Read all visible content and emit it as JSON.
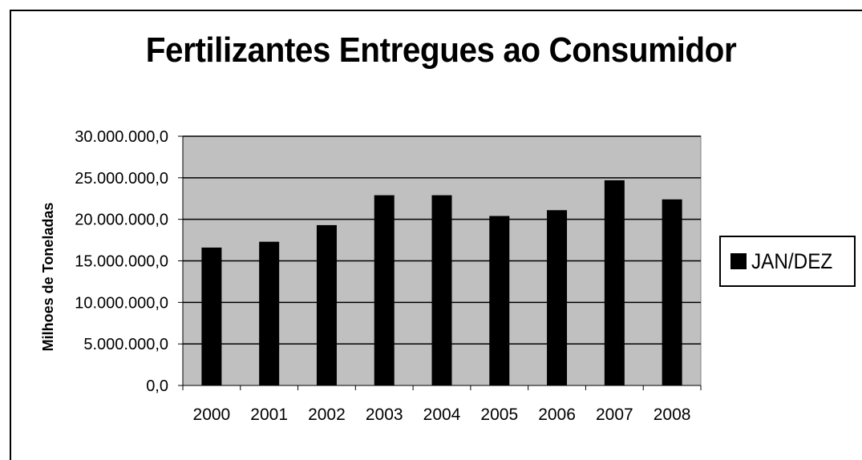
{
  "chart_data": {
    "type": "bar",
    "title": "Fertilizantes Entregues ao Consumidor",
    "ylabel": "Milhoes de Toneladas",
    "xlabel": "",
    "categories": [
      "2000",
      "2001",
      "2002",
      "2003",
      "2004",
      "2005",
      "2006",
      "2007",
      "2008"
    ],
    "series": [
      {
        "name": "JAN/DEZ",
        "values": [
          16600000,
          17300000,
          19300000,
          22900000,
          22900000,
          20400000,
          21100000,
          24700000,
          22400000
        ]
      }
    ],
    "ylim": [
      0,
      30000000
    ],
    "yticks": [
      0,
      5000000,
      10000000,
      15000000,
      20000000,
      25000000,
      30000000
    ],
    "ytick_labels": [
      "0,0",
      "5.000.000,0",
      "10.000.000,0",
      "15.000.000,0",
      "20.000.000,0",
      "25.000.000,0",
      "30.000.000,0"
    ],
    "grid": true,
    "legend_position": "right",
    "colors": {
      "bar": "#000000",
      "plot_background": "#c0c0c0",
      "gridline": "#000000"
    }
  }
}
